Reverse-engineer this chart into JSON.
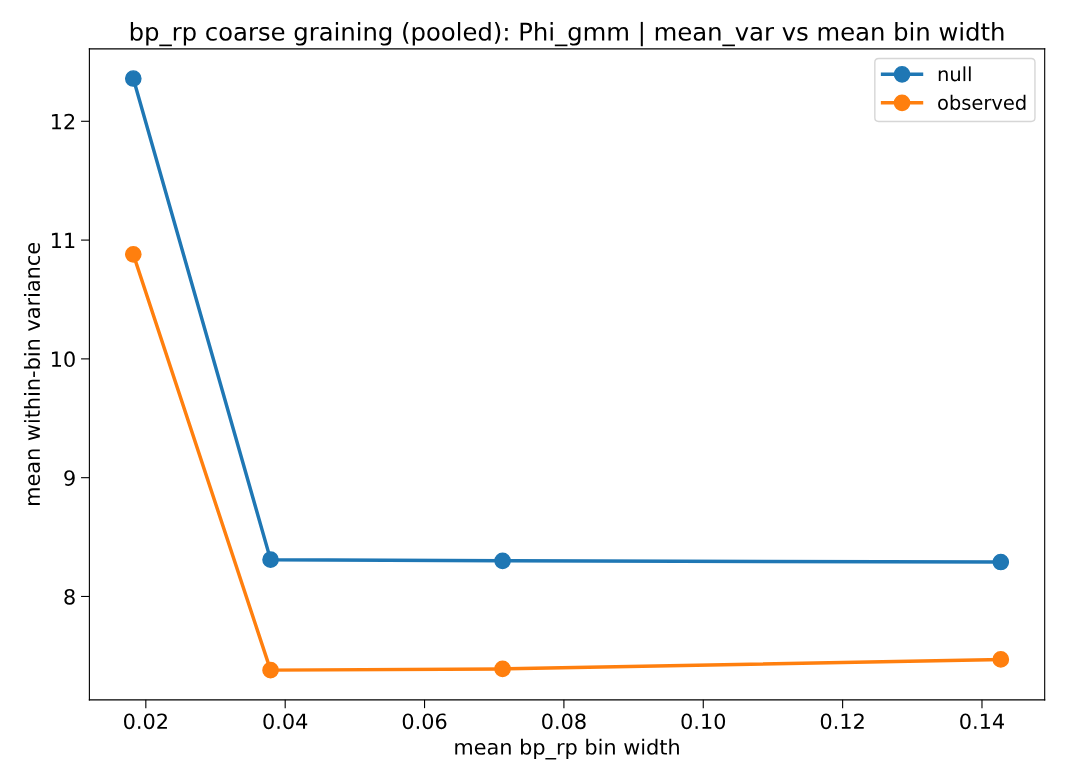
{
  "chart_data": {
    "type": "line",
    "title": "bp_rp coarse graining (pooled): Phi_gmm | mean_var vs mean bin width",
    "xlabel": "mean bp_rp bin width",
    "ylabel": "mean within-bin variance",
    "x": [
      0.0182,
      0.0379,
      0.0712,
      0.1427
    ],
    "series": [
      {
        "name": "null",
        "color": "#1f77b4",
        "values": [
          12.36,
          8.31,
          8.3,
          8.29
        ]
      },
      {
        "name": "observed",
        "color": "#ff7f0e",
        "values": [
          10.88,
          7.38,
          7.39,
          7.47
        ]
      }
    ],
    "xlim": [
      0.0119,
      0.149
    ],
    "xticks": [
      {
        "value": 0.02,
        "label": "0.02"
      },
      {
        "value": 0.04,
        "label": "0.04"
      },
      {
        "value": 0.06,
        "label": "0.06"
      },
      {
        "value": 0.08,
        "label": "0.08"
      },
      {
        "value": 0.1,
        "label": "0.10"
      },
      {
        "value": 0.12,
        "label": "0.12"
      },
      {
        "value": 0.14,
        "label": "0.14"
      }
    ],
    "ylim": [
      7.13,
      12.61
    ],
    "yticks": [
      8,
      9,
      10,
      11,
      12
    ],
    "legend": "top right",
    "marker": "circle",
    "line_style": "solid",
    "grid": false
  }
}
